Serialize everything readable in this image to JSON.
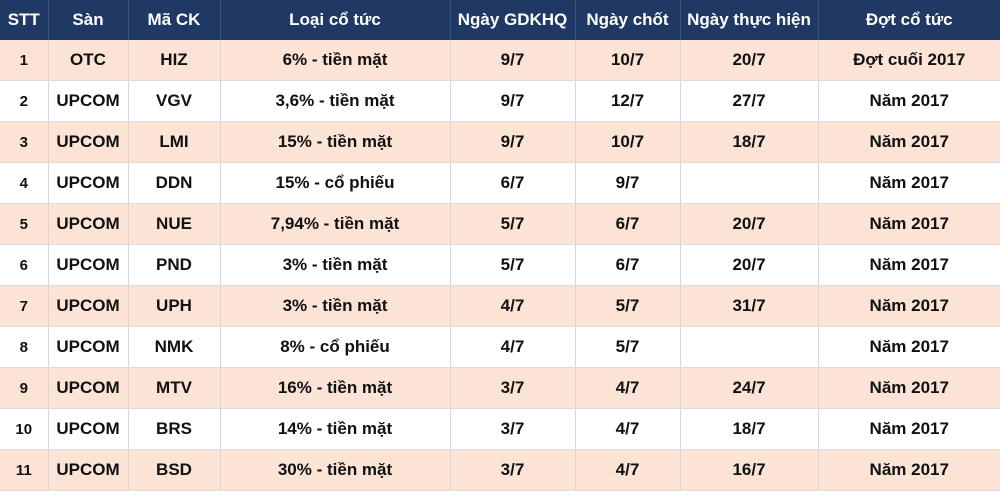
{
  "headers": [
    "STT",
    "Sàn",
    "Mã CK",
    "Loại cổ tức",
    "Ngày GDKHQ",
    "Ngày chốt",
    "Ngày thực hiện",
    "Đợt cổ tức"
  ],
  "rows": [
    [
      "1",
      "OTC",
      "HIZ",
      "6% - tiền mặt",
      "9/7",
      "10/7",
      "20/7",
      "Đợt cuối 2017"
    ],
    [
      "2",
      "UPCOM",
      "VGV",
      "3,6% - tiền mặt",
      "9/7",
      "12/7",
      "27/7",
      "Năm 2017"
    ],
    [
      "3",
      "UPCOM",
      "LMI",
      "15% - tiền mặt",
      "9/7",
      "10/7",
      "18/7",
      "Năm 2017"
    ],
    [
      "4",
      "UPCOM",
      "DDN",
      "15% - cổ phiếu",
      "6/7",
      "9/7",
      "",
      "Năm 2017"
    ],
    [
      "5",
      "UPCOM",
      "NUE",
      "7,94% - tiền mặt",
      "5/7",
      "6/7",
      "20/7",
      "Năm 2017"
    ],
    [
      "6",
      "UPCOM",
      "PND",
      "3% - tiền mặt",
      "5/7",
      "6/7",
      "20/7",
      "Năm 2017"
    ],
    [
      "7",
      "UPCOM",
      "UPH",
      "3% - tiền mặt",
      "4/7",
      "5/7",
      "31/7",
      "Năm 2017"
    ],
    [
      "8",
      "UPCOM",
      "NMK",
      "8% - cổ phiếu",
      "4/7",
      "5/7",
      "",
      "Năm 2017"
    ],
    [
      "9",
      "UPCOM",
      "MTV",
      "16% - tiền mặt",
      "3/7",
      "4/7",
      "24/7",
      "Năm 2017"
    ],
    [
      "10",
      "UPCOM",
      "BRS",
      "14% - tiền mặt",
      "3/7",
      "4/7",
      "18/7",
      "Năm 2017"
    ],
    [
      "11",
      "UPCOM",
      "BSD",
      "30% - tiền mặt",
      "3/7",
      "4/7",
      "16/7",
      "Năm 2017"
    ]
  ],
  "colors": {
    "header_bg": "#1f3864",
    "header_text": "#ffffff",
    "row_odd_bg": "#fbe4d5",
    "row_even_bg": "#ffffff"
  }
}
